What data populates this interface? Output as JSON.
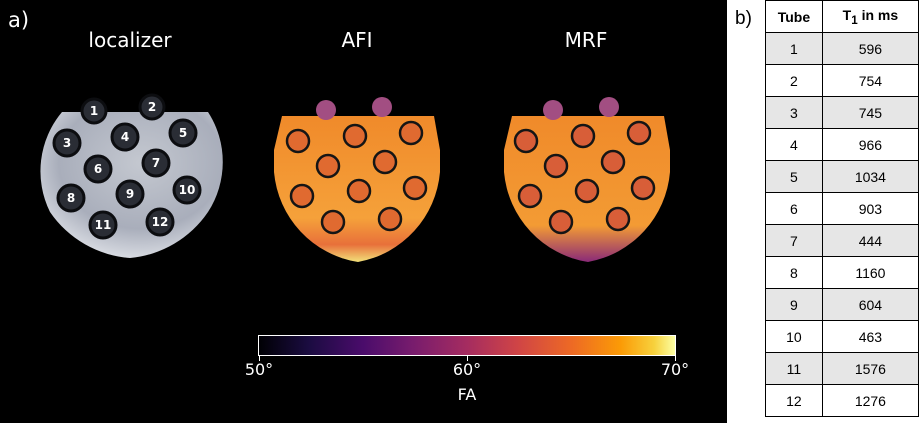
{
  "panel_a": {
    "label": "a)",
    "titles": {
      "localizer": "localizer",
      "afi": "AFI",
      "mrf": "MRF"
    },
    "tube_numbers": [
      "1",
      "2",
      "3",
      "4",
      "5",
      "6",
      "7",
      "8",
      "9",
      "10",
      "11",
      "12"
    ],
    "colorbar": {
      "ticks": [
        "50°",
        "60°",
        "70°"
      ],
      "label": "FA",
      "colormap": "inferno",
      "range": [
        50,
        70
      ]
    },
    "colors": {
      "background": "#000000",
      "map_main": "#f2902a",
      "tube_outline": "#111111"
    }
  },
  "panel_b": {
    "label": "b)",
    "columns": {
      "tube": "Tube",
      "t1_main": "T",
      "t1_sub": "1",
      "t1_rest": " in ms"
    },
    "rows": [
      {
        "tube": "1",
        "t1": "596"
      },
      {
        "tube": "2",
        "t1": "754"
      },
      {
        "tube": "3",
        "t1": "745"
      },
      {
        "tube": "4",
        "t1": "966"
      },
      {
        "tube": "5",
        "t1": "1034"
      },
      {
        "tube": "6",
        "t1": "903"
      },
      {
        "tube": "7",
        "t1": "444"
      },
      {
        "tube": "8",
        "t1": "1160"
      },
      {
        "tube": "9",
        "t1": "604"
      },
      {
        "tube": "10",
        "t1": "463"
      },
      {
        "tube": "11",
        "t1": "1576"
      },
      {
        "tube": "12",
        "t1": "1276"
      }
    ]
  }
}
